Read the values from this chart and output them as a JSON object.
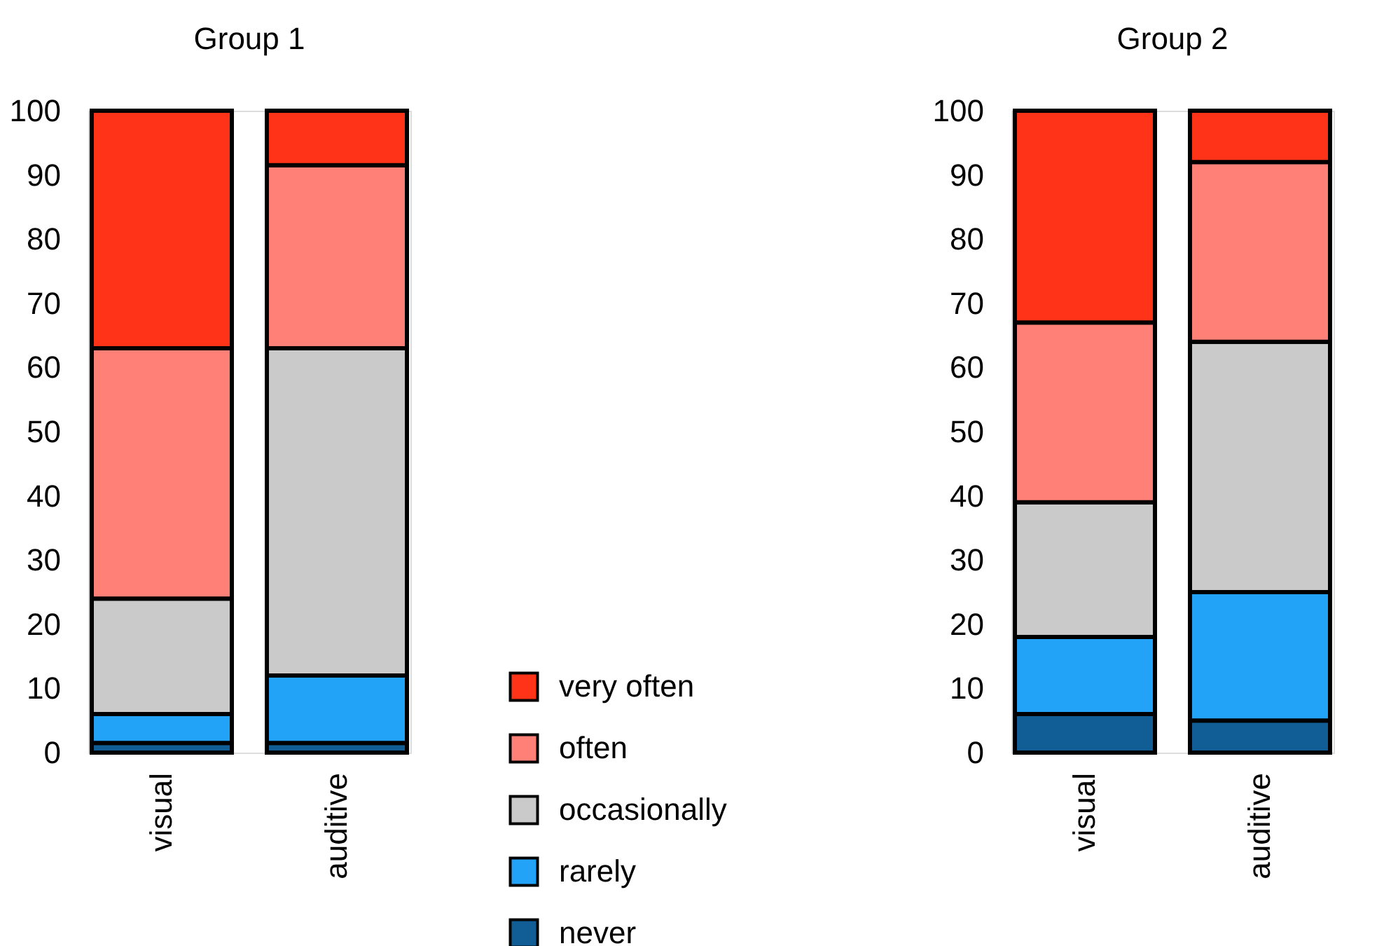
{
  "chart_data": [
    {
      "type": "bar",
      "title": "Group 1",
      "categories": [
        "visual",
        "auditive"
      ],
      "stacked": true,
      "legend": "right",
      "ylim": [
        0,
        100
      ],
      "yticks": [
        0,
        10,
        20,
        30,
        40,
        50,
        60,
        70,
        80,
        90,
        100
      ],
      "series": [
        {
          "name": "never",
          "color": "#115e97",
          "values": [
            1.5,
            1.5
          ]
        },
        {
          "name": "rarely",
          "color": "#22a3f8",
          "values": [
            4.5,
            10.5
          ]
        },
        {
          "name": "occasionally",
          "color": "#cacaca",
          "values": [
            18,
            51
          ]
        },
        {
          "name": "often",
          "color": "#ff8077",
          "values": [
            39,
            28.5
          ]
        },
        {
          "name": "very often",
          "color": "#ff3318",
          "values": [
            37,
            8.5
          ]
        }
      ]
    },
    {
      "type": "bar",
      "title": "Group 2",
      "categories": [
        "visual",
        "auditive"
      ],
      "stacked": true,
      "ylim": [
        0,
        100
      ],
      "yticks": [
        0,
        10,
        20,
        30,
        40,
        50,
        60,
        70,
        80,
        90,
        100
      ],
      "series": [
        {
          "name": "never",
          "color": "#115e97",
          "values": [
            6,
            5
          ]
        },
        {
          "name": "rarely",
          "color": "#22a3f8",
          "values": [
            12,
            20
          ]
        },
        {
          "name": "occasionally",
          "color": "#cacaca",
          "values": [
            21,
            39
          ]
        },
        {
          "name": "often",
          "color": "#ff8077",
          "values": [
            28,
            28
          ]
        },
        {
          "name": "very often",
          "color": "#ff3318",
          "values": [
            33,
            8
          ]
        }
      ]
    }
  ]
}
